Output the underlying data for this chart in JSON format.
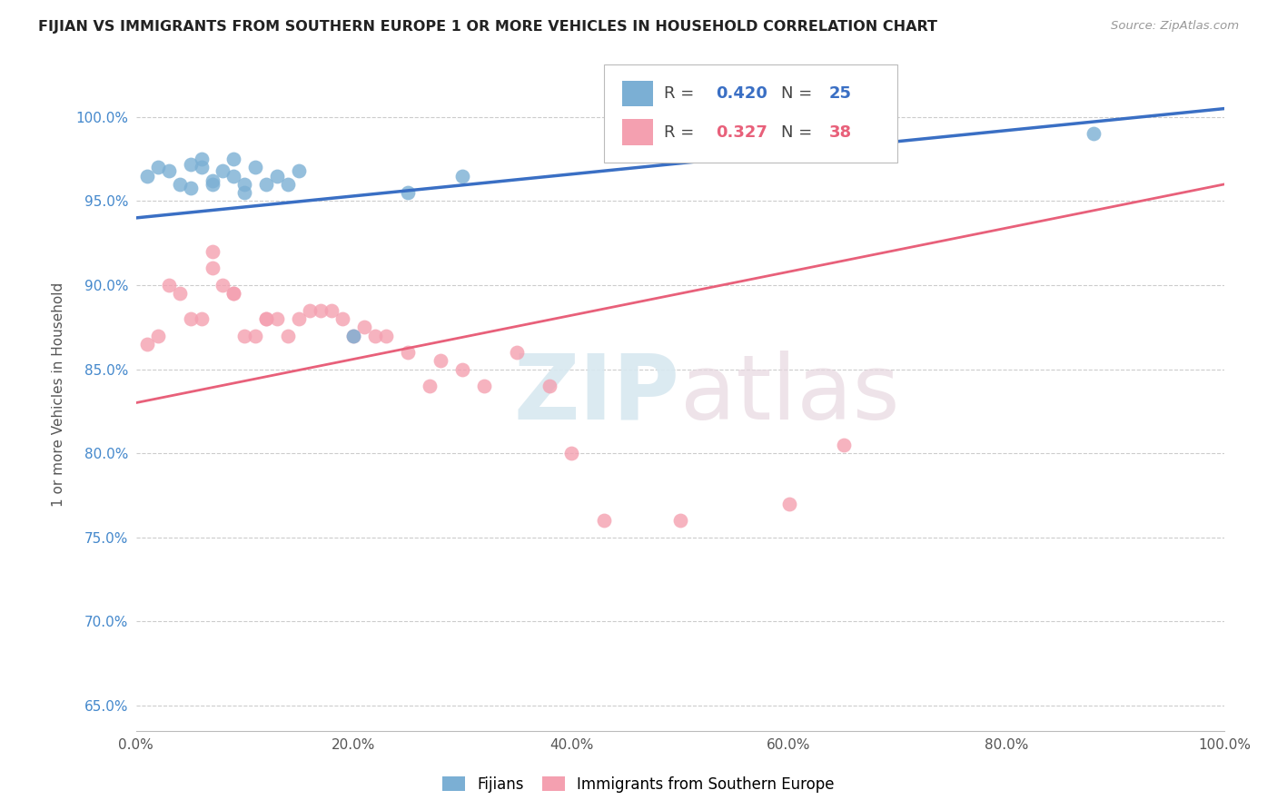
{
  "title": "FIJIAN VS IMMIGRANTS FROM SOUTHERN EUROPE 1 OR MORE VEHICLES IN HOUSEHOLD CORRELATION CHART",
  "source": "Source: ZipAtlas.com",
  "ylabel": "1 or more Vehicles in Household",
  "xlim": [
    0.0,
    1.0
  ],
  "ylim": [
    0.635,
    1.035
  ],
  "yticks": [
    0.65,
    0.7,
    0.75,
    0.8,
    0.85,
    0.9,
    0.95,
    1.0
  ],
  "ytick_labels": [
    "65.0%",
    "70.0%",
    "75.0%",
    "80.0%",
    "85.0%",
    "90.0%",
    "95.0%",
    "100.0%"
  ],
  "xticks": [
    0.0,
    0.2,
    0.4,
    0.6,
    0.8,
    1.0
  ],
  "xtick_labels": [
    "0.0%",
    "20.0%",
    "40.0%",
    "60.0%",
    "80.0%",
    "100.0%"
  ],
  "fijian_color": "#7BAFD4",
  "immigrant_color": "#F4A0B0",
  "fijian_line_color": "#3A6FC4",
  "immigrant_line_color": "#E8607A",
  "R_fijian": 0.42,
  "N_fijian": 25,
  "R_immigrant": 0.327,
  "N_immigrant": 38,
  "fijian_x": [
    0.01,
    0.02,
    0.03,
    0.04,
    0.05,
    0.05,
    0.06,
    0.06,
    0.07,
    0.07,
    0.08,
    0.09,
    0.09,
    0.1,
    0.1,
    0.11,
    0.12,
    0.13,
    0.14,
    0.15,
    0.2,
    0.25,
    0.3,
    0.68,
    0.88
  ],
  "fijian_y": [
    0.965,
    0.97,
    0.968,
    0.96,
    0.972,
    0.958,
    0.975,
    0.97,
    0.96,
    0.962,
    0.968,
    0.975,
    0.965,
    0.96,
    0.955,
    0.97,
    0.96,
    0.965,
    0.96,
    0.968,
    0.87,
    0.955,
    0.965,
    0.99,
    0.99
  ],
  "immigrant_x": [
    0.01,
    0.02,
    0.03,
    0.04,
    0.05,
    0.06,
    0.07,
    0.07,
    0.08,
    0.09,
    0.09,
    0.1,
    0.11,
    0.12,
    0.12,
    0.13,
    0.14,
    0.15,
    0.16,
    0.17,
    0.18,
    0.19,
    0.2,
    0.21,
    0.22,
    0.23,
    0.25,
    0.27,
    0.28,
    0.3,
    0.32,
    0.35,
    0.38,
    0.4,
    0.43,
    0.5,
    0.6,
    0.65
  ],
  "immigrant_y": [
    0.865,
    0.87,
    0.9,
    0.895,
    0.88,
    0.88,
    0.92,
    0.91,
    0.9,
    0.895,
    0.895,
    0.87,
    0.87,
    0.88,
    0.88,
    0.88,
    0.87,
    0.88,
    0.885,
    0.885,
    0.885,
    0.88,
    0.87,
    0.875,
    0.87,
    0.87,
    0.86,
    0.84,
    0.855,
    0.85,
    0.84,
    0.86,
    0.84,
    0.8,
    0.76,
    0.76,
    0.77,
    0.805
  ],
  "watermark_zip": "ZIP",
  "watermark_atlas": "atlas",
  "grid_color": "#CCCCCC",
  "background_color": "#FFFFFF",
  "legend_label_fijians": "Fijians",
  "legend_label_immigrants": "Immigrants from Southern Europe"
}
